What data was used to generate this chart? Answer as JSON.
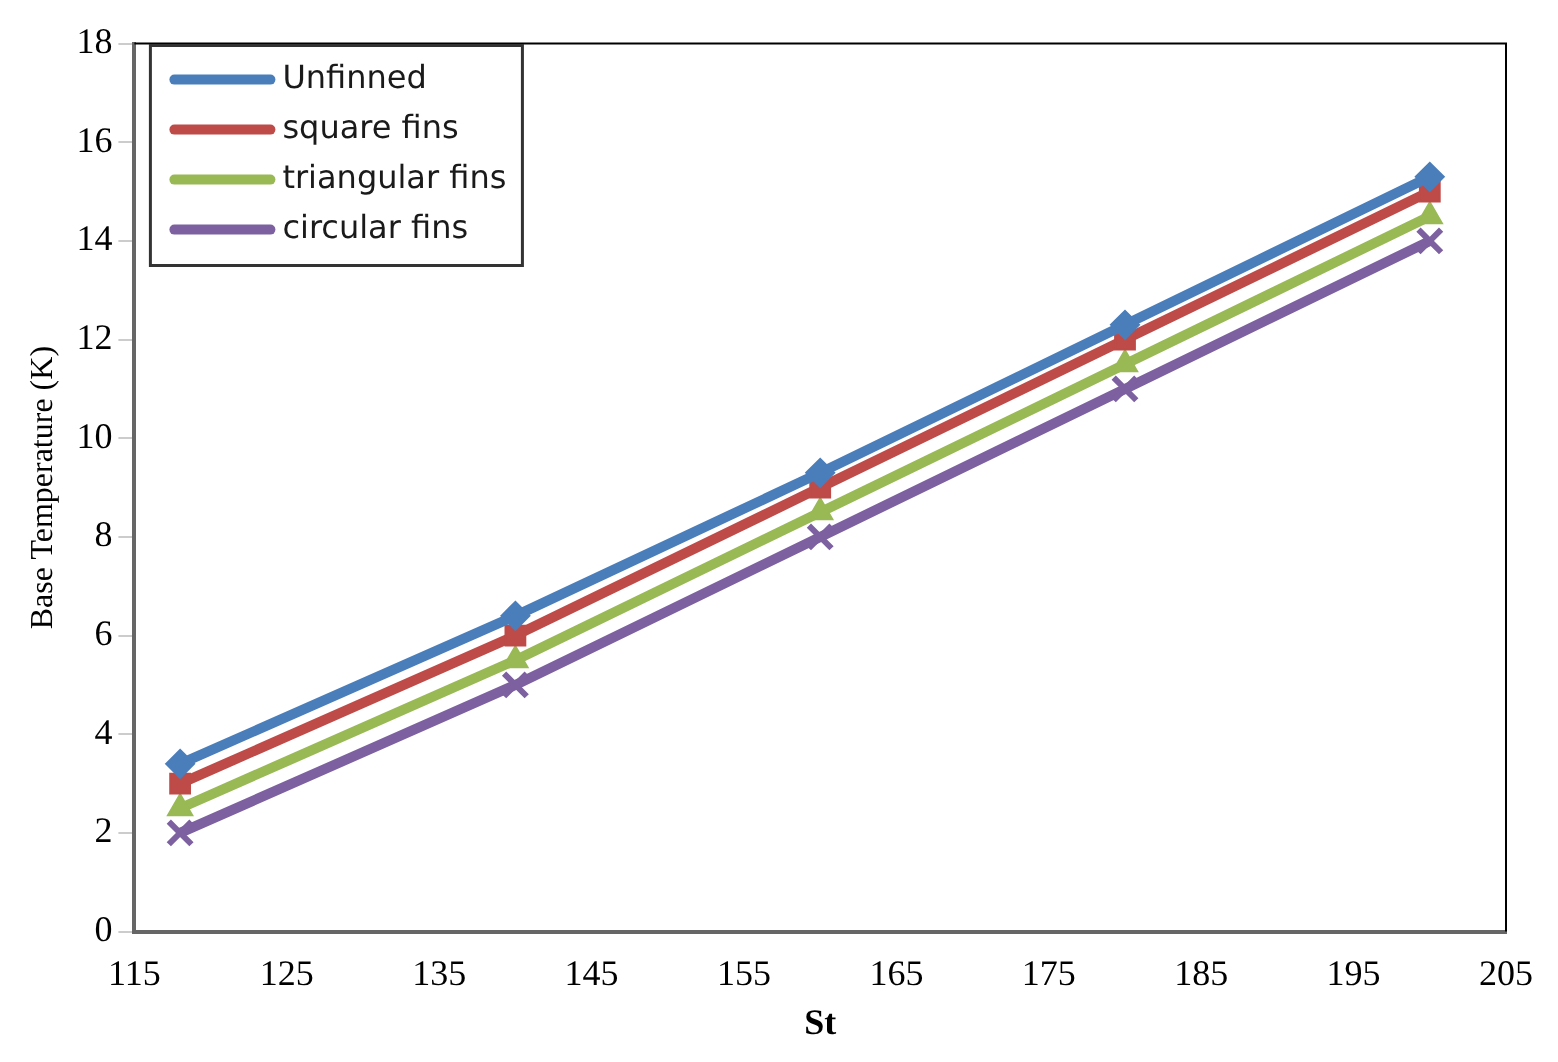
{
  "chart_data": {
    "type": "line",
    "xlabel": "St",
    "ylabel": "Base Temperature (K)",
    "x": [
      118,
      140,
      160,
      180,
      200
    ],
    "xlim": [
      115,
      205
    ],
    "xticks": [
      115,
      125,
      135,
      145,
      155,
      165,
      175,
      185,
      195,
      205
    ],
    "ylim": [
      0,
      18
    ],
    "yticks": [
      0,
      2,
      4,
      6,
      8,
      10,
      12,
      14,
      16,
      18
    ],
    "grid": false,
    "legend": "top left",
    "line_style": "solid",
    "series": [
      {
        "name": "Unfinned",
        "color": "#4a7ebb",
        "marker": "diamond",
        "values": [
          3.4,
          6.4,
          9.3,
          12.3,
          15.3
        ]
      },
      {
        "name": "square fins",
        "color": "#be4b48",
        "marker": "square",
        "values": [
          3,
          6,
          9,
          12,
          15
        ]
      },
      {
        "name": "triangular fins",
        "color": "#98b954",
        "marker": "triangle",
        "values": [
          2.5,
          5.5,
          8.5,
          11.5,
          14.5
        ]
      },
      {
        "name": "circular fins",
        "color": "#7d60a0",
        "marker": "cross",
        "values": [
          2,
          5,
          8,
          11,
          14
        ]
      }
    ]
  }
}
